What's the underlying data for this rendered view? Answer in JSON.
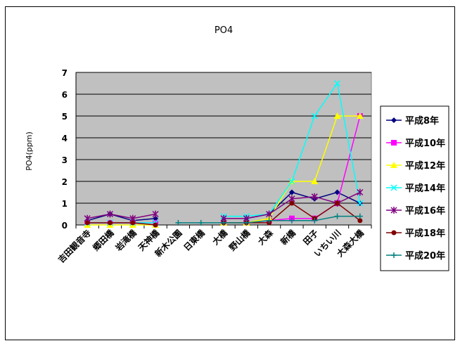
{
  "chart_data": {
    "type": "line",
    "title": "PO4",
    "ylabel": "PO4(ppm)",
    "xlabel": "",
    "ylim": [
      0,
      7
    ],
    "yticks": [
      0,
      1,
      2,
      3,
      4,
      5,
      6,
      7
    ],
    "grid": true,
    "legend_position": "right",
    "plot_bg": "#c0c0c0",
    "categories": [
      "吉田観音寺",
      "郷田橋",
      "岩滝橋",
      "天神橋",
      "新木公園",
      "日東橋",
      "大橋",
      "野山橋",
      "大森",
      "新橋",
      "田子",
      "いちい川",
      "大森大橋"
    ],
    "series": [
      {
        "name": "平成8年",
        "color": "#000080",
        "marker": "diamond",
        "values": [
          0.2,
          0.5,
          0.2,
          0.3,
          null,
          null,
          0.3,
          0.3,
          0.5,
          1.5,
          1.2,
          1.5,
          1.0
        ]
      },
      {
        "name": "平成10年",
        "color": "#ff00ff",
        "marker": "square",
        "values": [
          0.1,
          0.1,
          0.1,
          0.1,
          null,
          null,
          0.1,
          0.1,
          0.2,
          0.3,
          0.3,
          1.0,
          5.0
        ]
      },
      {
        "name": "平成12年",
        "color": "#ffff00",
        "marker": "triangle",
        "values": [
          0.0,
          0.0,
          0.0,
          0.0,
          null,
          null,
          0.1,
          0.1,
          0.3,
          2.0,
          2.0,
          5.0,
          5.0
        ]
      },
      {
        "name": "平成14年",
        "color": "#00ffff",
        "marker": "x",
        "values": [
          0.1,
          0.1,
          0.1,
          0.1,
          null,
          null,
          0.4,
          0.4,
          0.5,
          2.0,
          5.0,
          6.5,
          1.0
        ]
      },
      {
        "name": "平成16年",
        "color": "#800080",
        "marker": "star",
        "values": [
          0.3,
          0.5,
          0.3,
          0.5,
          null,
          null,
          0.3,
          0.3,
          0.5,
          1.2,
          1.3,
          1.0,
          1.5
        ]
      },
      {
        "name": "平成18年",
        "color": "#800000",
        "marker": "circle",
        "values": [
          0.1,
          0.1,
          0.1,
          0.0,
          null,
          null,
          0.1,
          0.1,
          0.1,
          1.0,
          0.3,
          1.0,
          0.2
        ]
      },
      {
        "name": "平成20年",
        "color": "#008080",
        "marker": "plus",
        "values": [
          null,
          null,
          null,
          null,
          0.1,
          0.1,
          0.1,
          0.1,
          0.2,
          0.2,
          0.2,
          0.4,
          0.4
        ]
      }
    ]
  }
}
